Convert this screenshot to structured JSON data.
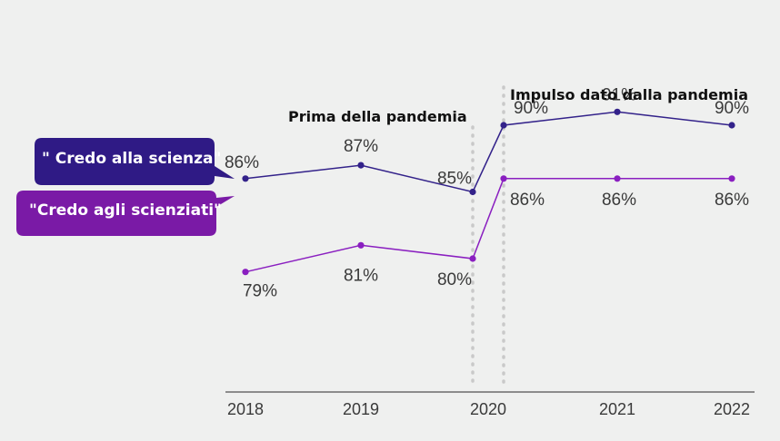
{
  "chart_data": {
    "type": "line",
    "x": [
      "2018",
      "2019",
      "2020a",
      "2020b",
      "2021",
      "2022"
    ],
    "x_tick_labels": [
      "2018",
      "2019",
      "2020",
      "2021",
      "2022"
    ],
    "ylim": [
      70,
      100
    ],
    "grid": false,
    "annotations": {
      "pre_pandemic": "Prima della pandemia",
      "pandemic_boost": "Impulso dato dalla pandemia"
    },
    "series": [
      {
        "name": "\" Credo alla scienza\"",
        "color": "#33228a",
        "values": [
          86,
          87,
          85,
          90,
          91,
          90
        ],
        "labels": [
          "86%",
          "87%",
          "85%",
          "90%",
          "91%",
          "90%"
        ]
      },
      {
        "name": "\"Credo agli scienziati\"",
        "color": "#8a1fc0",
        "values": [
          79,
          81,
          80,
          86,
          86,
          86
        ],
        "labels": [
          "79%",
          "81%",
          "80%",
          "86%",
          "86%",
          "86%"
        ]
      }
    ]
  },
  "legend": {
    "science_label": "\" Credo alla scienza\"",
    "science_color": "#2f1a85",
    "scientists_label": "\"Credo agli scienziati\"",
    "scientists_color": "#7a1aa6"
  }
}
